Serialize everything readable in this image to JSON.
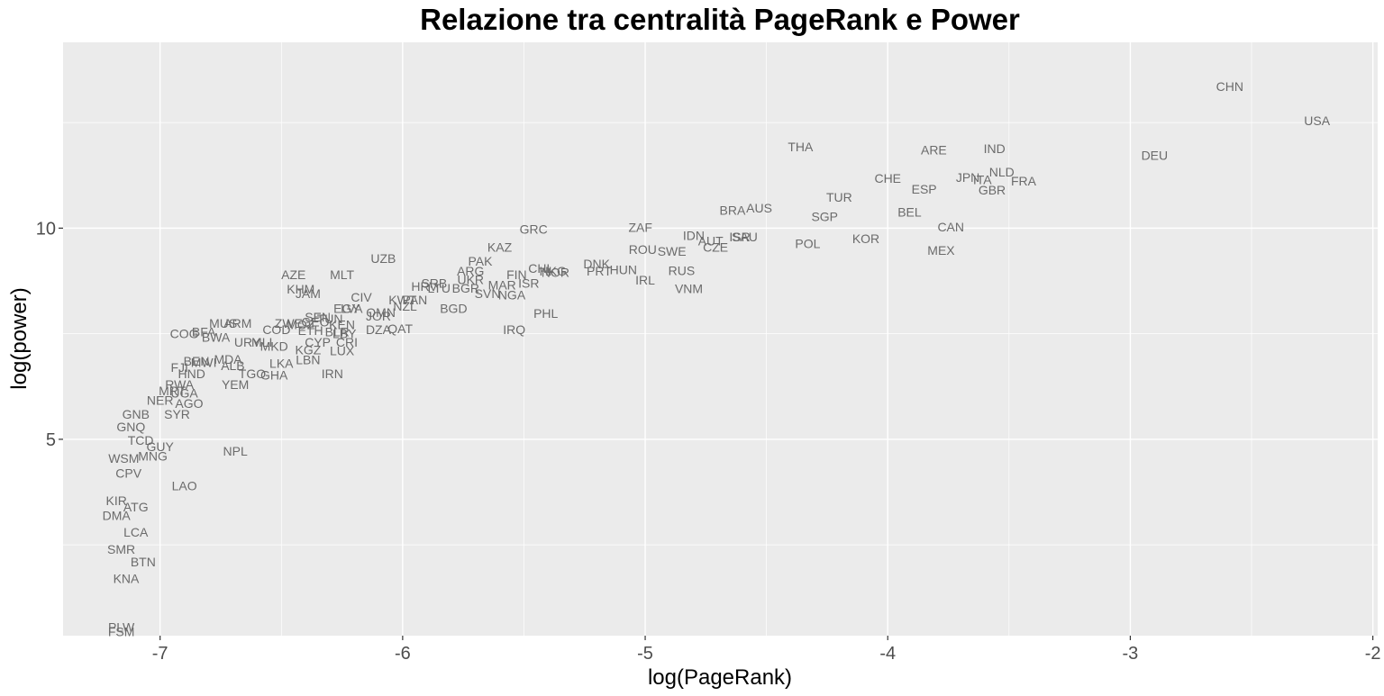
{
  "chart_data": {
    "type": "scatter",
    "title": "Relazione tra centralità PageRank e Power",
    "xlabel": "log(PageRank)",
    "ylabel": "log(power)",
    "xlim": [
      -7.4,
      -1.98
    ],
    "ylim": [
      0.35,
      14.4
    ],
    "x_ticks": [
      -7,
      -6,
      -5,
      -4,
      -3,
      -2
    ],
    "x_tick_labels": [
      "-7",
      "-6",
      "-5",
      "-4",
      "-3",
      "-2"
    ],
    "y_ticks": [
      5,
      10
    ],
    "y_tick_labels": [
      "5",
      "10"
    ],
    "grid": true,
    "legend": "none",
    "colors": {
      "panel": "#ebebeb",
      "grid": "#ffffff",
      "label": "#6b6b6b"
    },
    "points": [
      {
        "label": "CHN",
        "x": -2.59,
        "y": 13.35
      },
      {
        "label": "USA",
        "x": -2.23,
        "y": 12.55
      },
      {
        "label": "DEU",
        "x": -2.9,
        "y": 11.72
      },
      {
        "label": "THA",
        "x": -4.36,
        "y": 11.93
      },
      {
        "label": "ARE",
        "x": -3.81,
        "y": 11.85
      },
      {
        "label": "IND",
        "x": -3.56,
        "y": 11.88
      },
      {
        "label": "CHE",
        "x": -4.0,
        "y": 11.18
      },
      {
        "label": "JPN",
        "x": -3.67,
        "y": 11.2
      },
      {
        "label": "NLD",
        "x": -3.53,
        "y": 11.33
      },
      {
        "label": "ITA",
        "x": -3.61,
        "y": 11.15
      },
      {
        "label": "FRA",
        "x": -3.44,
        "y": 11.12
      },
      {
        "label": "ESP",
        "x": -3.85,
        "y": 10.92
      },
      {
        "label": "GBR",
        "x": -3.57,
        "y": 10.9
      },
      {
        "label": "TUR",
        "x": -4.2,
        "y": 10.73
      },
      {
        "label": "AUS",
        "x": -4.53,
        "y": 10.48
      },
      {
        "label": "BRA",
        "x": -4.64,
        "y": 10.42
      },
      {
        "label": "BEL",
        "x": -3.91,
        "y": 10.38
      },
      {
        "label": "SGP",
        "x": -4.26,
        "y": 10.27
      },
      {
        "label": "CAN",
        "x": -3.74,
        "y": 10.03
      },
      {
        "label": "GRC",
        "x": -5.46,
        "y": 9.98
      },
      {
        "label": "ZAF",
        "x": -5.02,
        "y": 10.02
      },
      {
        "label": "IDN",
        "x": -4.8,
        "y": 9.83
      },
      {
        "label": "ISR",
        "x": -4.61,
        "y": 9.8
      },
      {
        "label": "SAU",
        "x": -4.59,
        "y": 9.8
      },
      {
        "label": "AUT",
        "x": -4.73,
        "y": 9.7
      },
      {
        "label": "CZE",
        "x": -4.71,
        "y": 9.55
      },
      {
        "label": "KOR",
        "x": -4.09,
        "y": 9.75
      },
      {
        "label": "POL",
        "x": -4.33,
        "y": 9.63
      },
      {
        "label": "MEX",
        "x": -3.78,
        "y": 9.48
      },
      {
        "label": "SWE",
        "x": -4.89,
        "y": 9.45
      },
      {
        "label": "ROU",
        "x": -5.01,
        "y": 9.5
      },
      {
        "label": "KAZ",
        "x": -5.6,
        "y": 9.55
      },
      {
        "label": "UZB",
        "x": -6.08,
        "y": 9.28
      },
      {
        "label": "PAK",
        "x": -5.68,
        "y": 9.22
      },
      {
        "label": "DNK",
        "x": -5.2,
        "y": 9.15
      },
      {
        "label": "CHL",
        "x": -5.43,
        "y": 9.05
      },
      {
        "label": "NOR",
        "x": -5.37,
        "y": 8.95
      },
      {
        "label": "HKG",
        "x": -5.38,
        "y": 8.98
      },
      {
        "label": "PRT",
        "x": -5.19,
        "y": 8.98
      },
      {
        "label": "HUN",
        "x": -5.09,
        "y": 9.02
      },
      {
        "label": "RUS",
        "x": -4.85,
        "y": 9.0
      },
      {
        "label": "ARG",
        "x": -5.72,
        "y": 8.98
      },
      {
        "label": "AZE",
        "x": -6.45,
        "y": 8.9
      },
      {
        "label": "MLT",
        "x": -6.25,
        "y": 8.9
      },
      {
        "label": "FIN",
        "x": -5.53,
        "y": 8.9
      },
      {
        "label": "UKR",
        "x": -5.72,
        "y": 8.78
      },
      {
        "label": "IRL",
        "x": -5.0,
        "y": 8.77
      },
      {
        "label": "ISR",
        "x": -5.48,
        "y": 8.7
      },
      {
        "label": "MAR",
        "x": -5.59,
        "y": 8.65
      },
      {
        "label": "SRB",
        "x": -5.87,
        "y": 8.7
      },
      {
        "label": "HRV",
        "x": -5.91,
        "y": 8.62
      },
      {
        "label": "LTU",
        "x": -5.85,
        "y": 8.58
      },
      {
        "label": "BGR",
        "x": -5.74,
        "y": 8.58
      },
      {
        "label": "VNM",
        "x": -4.82,
        "y": 8.57
      },
      {
        "label": "KHM",
        "x": -6.42,
        "y": 8.56
      },
      {
        "label": "JAM",
        "x": -6.39,
        "y": 8.45
      },
      {
        "label": "SVN",
        "x": -5.65,
        "y": 8.45
      },
      {
        "label": "NGA",
        "x": -5.55,
        "y": 8.42
      },
      {
        "label": "PHL",
        "x": -5.41,
        "y": 7.98
      },
      {
        "label": "CIV",
        "x": -6.17,
        "y": 8.37
      },
      {
        "label": "LVA",
        "x": -6.21,
        "y": 8.1
      },
      {
        "label": "EGY",
        "x": -6.23,
        "y": 8.1
      },
      {
        "label": "NZL",
        "x": -5.99,
        "y": 8.15
      },
      {
        "label": "KWT",
        "x": -6.0,
        "y": 8.3
      },
      {
        "label": "PAN",
        "x": -5.95,
        "y": 8.3
      },
      {
        "label": "BGD",
        "x": -5.79,
        "y": 8.1
      },
      {
        "label": "OMN",
        "x": -6.09,
        "y": 8.0
      },
      {
        "label": "JOR",
        "x": -6.1,
        "y": 7.92
      },
      {
        "label": "QAT",
        "x": -6.01,
        "y": 7.62
      },
      {
        "label": "DZA",
        "x": -6.1,
        "y": 7.6
      },
      {
        "label": "IRQ",
        "x": -5.54,
        "y": 7.6
      },
      {
        "label": "ARM",
        "x": -6.68,
        "y": 7.75
      },
      {
        "label": "MUS",
        "x": -6.74,
        "y": 7.75
      },
      {
        "label": "COG",
        "x": -6.9,
        "y": 7.5
      },
      {
        "label": "BFA",
        "x": -6.82,
        "y": 7.55
      },
      {
        "label": "BWA",
        "x": -6.77,
        "y": 7.42
      },
      {
        "label": "URY",
        "x": -6.64,
        "y": 7.3
      },
      {
        "label": "TUN",
        "x": -6.3,
        "y": 7.85
      },
      {
        "label": "SEN",
        "x": -6.35,
        "y": 7.9
      },
      {
        "label": "GEO",
        "x": -6.36,
        "y": 7.78
      },
      {
        "label": "KEN",
        "x": -6.25,
        "y": 7.72
      },
      {
        "label": "BLR",
        "x": -6.27,
        "y": 7.55
      },
      {
        "label": "LBY",
        "x": -6.24,
        "y": 7.5
      },
      {
        "label": "ZWE",
        "x": -6.47,
        "y": 7.75
      },
      {
        "label": "MOZ",
        "x": -6.42,
        "y": 7.72
      },
      {
        "label": "COD",
        "x": -6.52,
        "y": 7.6
      },
      {
        "label": "ETH",
        "x": -6.38,
        "y": 7.58
      },
      {
        "label": "CYP",
        "x": -6.35,
        "y": 7.3
      },
      {
        "label": "CRI",
        "x": -6.23,
        "y": 7.3
      },
      {
        "label": "LUX",
        "x": -6.25,
        "y": 7.1
      },
      {
        "label": "MLI",
        "x": -6.58,
        "y": 7.3
      },
      {
        "label": "MKD",
        "x": -6.53,
        "y": 7.2
      },
      {
        "label": "KGZ",
        "x": -6.39,
        "y": 7.12
      },
      {
        "label": "LBN",
        "x": -6.39,
        "y": 6.88
      },
      {
        "label": "IRN",
        "x": -6.29,
        "y": 6.55
      },
      {
        "label": "MDA",
        "x": -6.72,
        "y": 6.9
      },
      {
        "label": "BEN",
        "x": -6.85,
        "y": 6.85
      },
      {
        "label": "MWI",
        "x": -6.82,
        "y": 6.82
      },
      {
        "label": "ALB",
        "x": -6.7,
        "y": 6.75
      },
      {
        "label": "LKA",
        "x": -6.5,
        "y": 6.8
      },
      {
        "label": "TGO",
        "x": -6.62,
        "y": 6.55
      },
      {
        "label": "GHA",
        "x": -6.53,
        "y": 6.52
      },
      {
        "label": "FJI",
        "x": -6.92,
        "y": 6.7
      },
      {
        "label": "HND",
        "x": -6.87,
        "y": 6.55
      },
      {
        "label": "YEM",
        "x": -6.69,
        "y": 6.3
      },
      {
        "label": "RWA",
        "x": -6.92,
        "y": 6.3
      },
      {
        "label": "MRT",
        "x": -6.95,
        "y": 6.15
      },
      {
        "label": "UGA",
        "x": -6.9,
        "y": 6.1
      },
      {
        "label": "NER",
        "x": -7.0,
        "y": 5.93
      },
      {
        "label": "AGO",
        "x": -6.88,
        "y": 5.85
      },
      {
        "label": "SYR",
        "x": -6.93,
        "y": 5.6
      },
      {
        "label": "GNB",
        "x": -7.1,
        "y": 5.6
      },
      {
        "label": "GNQ",
        "x": -7.12,
        "y": 5.3
      },
      {
        "label": "TCD",
        "x": -7.08,
        "y": 4.98
      },
      {
        "label": "GUY",
        "x": -7.0,
        "y": 4.83
      },
      {
        "label": "NPL",
        "x": -6.69,
        "y": 4.72
      },
      {
        "label": "WSM",
        "x": -7.15,
        "y": 4.55
      },
      {
        "label": "MNG",
        "x": -7.03,
        "y": 4.6
      },
      {
        "label": "CPV",
        "x": -7.13,
        "y": 4.2
      },
      {
        "label": "LAO",
        "x": -6.9,
        "y": 3.9
      },
      {
        "label": "ATG",
        "x": -7.1,
        "y": 3.4
      },
      {
        "label": "KIR",
        "x": -7.18,
        "y": 3.55
      },
      {
        "label": "DMA",
        "x": -7.18,
        "y": 3.2
      },
      {
        "label": "LCA",
        "x": -7.1,
        "y": 2.8
      },
      {
        "label": "SMR",
        "x": -7.16,
        "y": 2.4
      },
      {
        "label": "BTN",
        "x": -7.07,
        "y": 2.1
      },
      {
        "label": "KNA",
        "x": -7.14,
        "y": 1.7
      },
      {
        "label": "PLW",
        "x": -7.16,
        "y": 0.55
      },
      {
        "label": "FSM",
        "x": -7.16,
        "y": 0.45
      }
    ]
  }
}
